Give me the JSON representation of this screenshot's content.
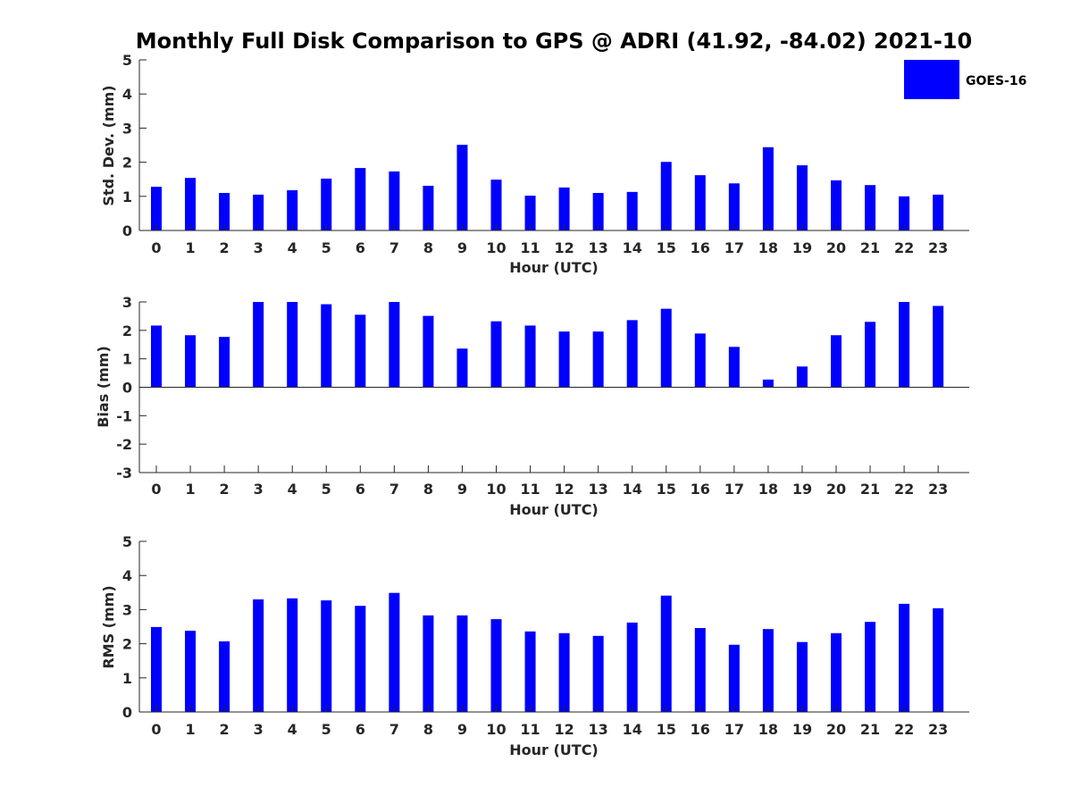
{
  "chart_data": {
    "type": "bar",
    "title": "Monthly Full Disk Comparison to GPS @ ADRI (41.92, -84.02) 2021-10",
    "legend": {
      "label": "GOES-16",
      "placement": "top-right",
      "color": "#0000ff"
    },
    "bar_color": "#0000ff",
    "categories": [
      "0",
      "1",
      "2",
      "3",
      "4",
      "5",
      "6",
      "7",
      "8",
      "9",
      "10",
      "11",
      "12",
      "13",
      "14",
      "15",
      "16",
      "17",
      "18",
      "19",
      "20",
      "21",
      "22",
      "23"
    ],
    "panels": [
      {
        "ylabel": "Std. Dev. (mm)",
        "xlabel": "Hour (UTC)",
        "ylim": [
          0,
          5
        ],
        "yticks": [
          "0",
          "1",
          "2",
          "3",
          "4",
          "5"
        ],
        "grid": false,
        "series": [
          {
            "name": "GOES-16",
            "values": [
              1.28,
              1.54,
              1.1,
              1.05,
              1.18,
              1.52,
              1.83,
              1.73,
              1.31,
              2.51,
              1.49,
              1.02,
              1.26,
              1.1,
              1.13,
              2.01,
              1.62,
              1.38,
              2.44,
              1.91,
              1.47,
              1.33,
              1.0,
              1.05
            ]
          }
        ]
      },
      {
        "ylabel": "Bias (mm)",
        "xlabel": "Hour (UTC)",
        "ylim": [
          -3,
          3
        ],
        "yticks": [
          "-3",
          "-2",
          "-1",
          "0",
          "1",
          "2",
          "3"
        ],
        "grid": false,
        "series": [
          {
            "name": "GOES-16",
            "values": [
              2.17,
              1.83,
              1.77,
              3.0,
              3.0,
              2.92,
              2.55,
              3.0,
              2.51,
              1.36,
              2.32,
              2.17,
              1.96,
              1.96,
              2.36,
              2.76,
              1.89,
              1.42,
              0.27,
              0.73,
              1.83,
              2.3,
              3.0,
              2.86
            ]
          }
        ]
      },
      {
        "ylabel": "RMS (mm)",
        "xlabel": "Hour (UTC)",
        "ylim": [
          0,
          5
        ],
        "yticks": [
          "0",
          "1",
          "2",
          "3",
          "4",
          "5"
        ],
        "grid": false,
        "series": [
          {
            "name": "GOES-16",
            "values": [
              2.49,
              2.38,
              2.07,
              3.3,
              3.33,
              3.27,
              3.11,
              3.49,
              2.83,
              2.83,
              2.72,
              2.36,
              2.31,
              2.23,
              2.62,
              3.41,
              2.46,
              1.97,
              2.43,
              2.05,
              2.31,
              2.64,
              3.17,
              3.04
            ]
          }
        ]
      }
    ]
  }
}
